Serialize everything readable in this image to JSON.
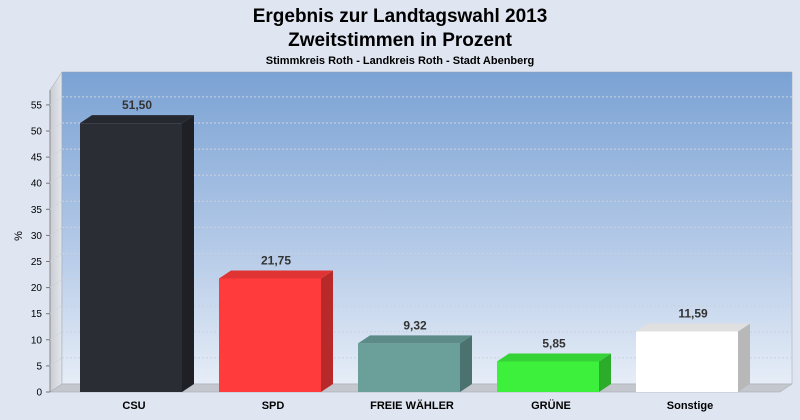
{
  "chart_data": {
    "type": "bar",
    "title": "Ergebnis zur Landtagswahl 2013",
    "title2": "Zweitstimmen in Prozent",
    "subtitle": "Stimmkreis Roth - Landkreis Roth - Stadt Abenberg",
    "ylabel": "%",
    "ylim": [
      0,
      58
    ],
    "yticks": [
      "0",
      "5",
      "10",
      "15",
      "20",
      "25",
      "30",
      "35",
      "40",
      "45",
      "50",
      "55"
    ],
    "categories": [
      "CSU",
      "SPD",
      "FREIE WÄHLER",
      "GRÜNE",
      "Sonstige"
    ],
    "values": [
      51.5,
      21.75,
      9.32,
      5.85,
      11.59
    ],
    "value_labels": [
      "51,50",
      "21,75",
      "9,32",
      "5,85",
      "11,59"
    ],
    "colors": [
      "#2b2d35",
      "#ff3b3b",
      "#6a9f9a",
      "#3cf03c",
      "#ffffff"
    ],
    "grid": true,
    "legend": "none"
  }
}
